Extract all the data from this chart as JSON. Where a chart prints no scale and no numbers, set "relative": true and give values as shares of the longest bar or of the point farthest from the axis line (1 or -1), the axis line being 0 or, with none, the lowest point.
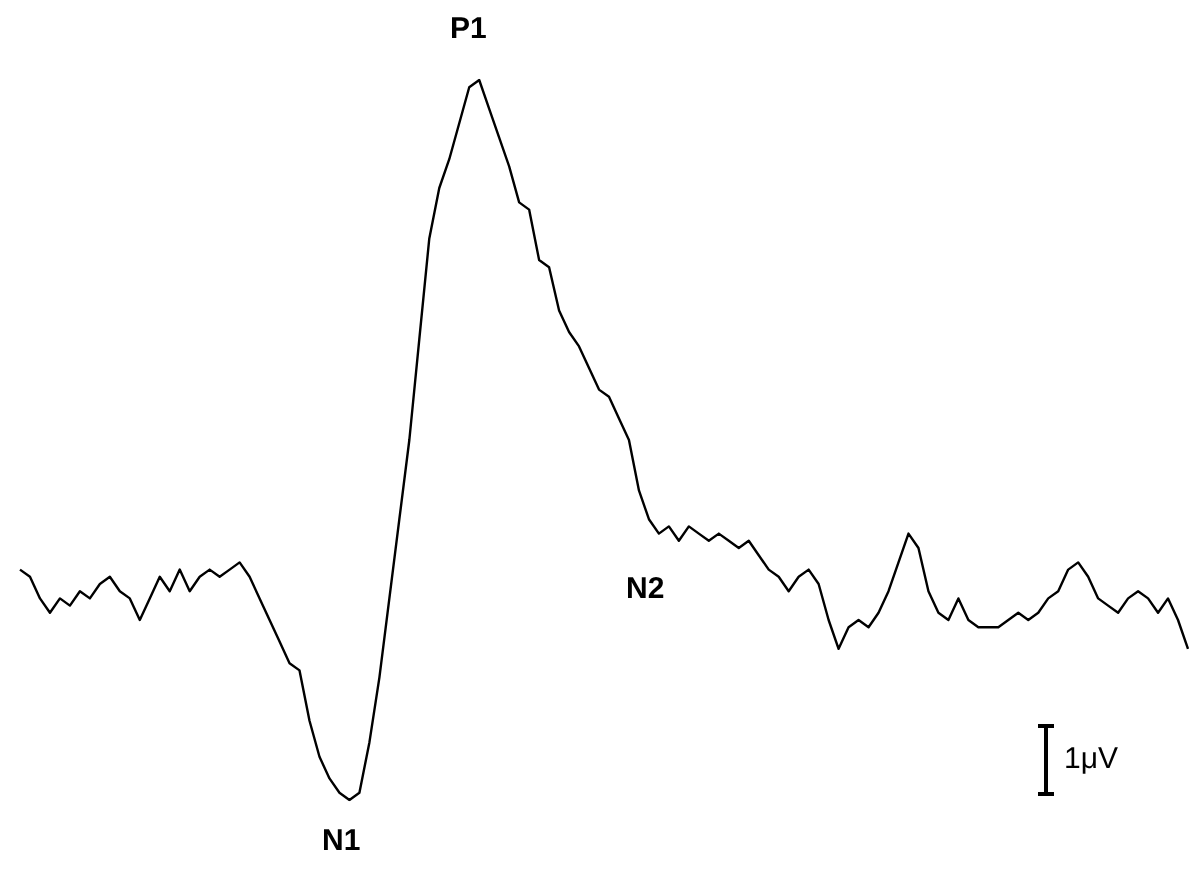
{
  "chart_data": {
    "type": "line",
    "relative": true,
    "color": "#000000",
    "line_style": "solid",
    "categories": [
      null,
      null,
      null,
      null,
      null,
      null,
      null,
      null,
      null,
      null,
      null,
      null,
      null,
      null,
      null,
      null,
      null,
      null,
      null,
      null,
      null,
      null,
      null,
      null,
      null,
      null,
      null,
      null,
      null,
      null,
      null,
      null,
      null,
      null,
      null,
      null,
      null,
      null,
      null,
      null,
      null,
      null,
      null,
      null,
      null,
      null,
      null,
      null,
      null,
      null,
      null,
      null,
      null,
      null,
      null,
      null,
      null,
      null,
      null,
      null,
      null,
      null,
      null,
      null,
      null,
      null,
      null,
      null,
      null,
      null,
      null,
      null,
      null,
      null,
      null,
      null,
      null,
      null,
      null,
      null,
      null,
      null,
      null,
      null,
      null,
      null,
      null,
      null,
      null,
      null,
      null,
      null,
      null,
      null,
      null,
      null,
      null,
      null,
      null,
      null,
      null,
      null,
      null,
      null,
      null,
      null,
      null,
      null,
      null,
      null,
      null,
      null,
      null,
      null,
      null,
      null,
      null,
      null
    ],
    "values": [
      0.32,
      0.31,
      0.28,
      0.26,
      0.28,
      0.27,
      0.29,
      0.28,
      0.3,
      0.31,
      0.29,
      0.28,
      0.25,
      0.28,
      0.31,
      0.29,
      0.32,
      0.29,
      0.31,
      0.32,
      0.31,
      0.32,
      0.33,
      0.31,
      0.28,
      0.25,
      0.22,
      0.19,
      0.18,
      0.11,
      0.06,
      0.03,
      0.01,
      0,
      0.01,
      0.08,
      0.17,
      0.28,
      0.39,
      0.5,
      0.64,
      0.78,
      0.85,
      0.89,
      0.94,
      0.99,
      1,
      0.96,
      0.92,
      0.88,
      0.83,
      0.82,
      0.75,
      0.74,
      0.68,
      0.65,
      0.63,
      0.6,
      0.57,
      0.56,
      0.53,
      0.5,
      0.43,
      0.39,
      0.37,
      0.38,
      0.36,
      0.38,
      0.37,
      0.36,
      0.37,
      0.36,
      0.35,
      0.36,
      0.34,
      0.32,
      0.31,
      0.29,
      0.31,
      0.32,
      0.3,
      0.25,
      0.21,
      0.24,
      0.25,
      0.24,
      0.26,
      0.29,
      0.33,
      0.37,
      0.35,
      0.29,
      0.26,
      0.25,
      0.28,
      0.25,
      0.24,
      0.24,
      0.24,
      0.25,
      0.26,
      0.25,
      0.26,
      0.28,
      0.29,
      0.32,
      0.33,
      0.31,
      0.28,
      0.27,
      0.26,
      0.28,
      0.29,
      0.28,
      0.26,
      0.28,
      0.25,
      0.21
    ],
    "annotations": [
      "P1",
      "N1",
      "N2",
      "1μV"
    ]
  }
}
